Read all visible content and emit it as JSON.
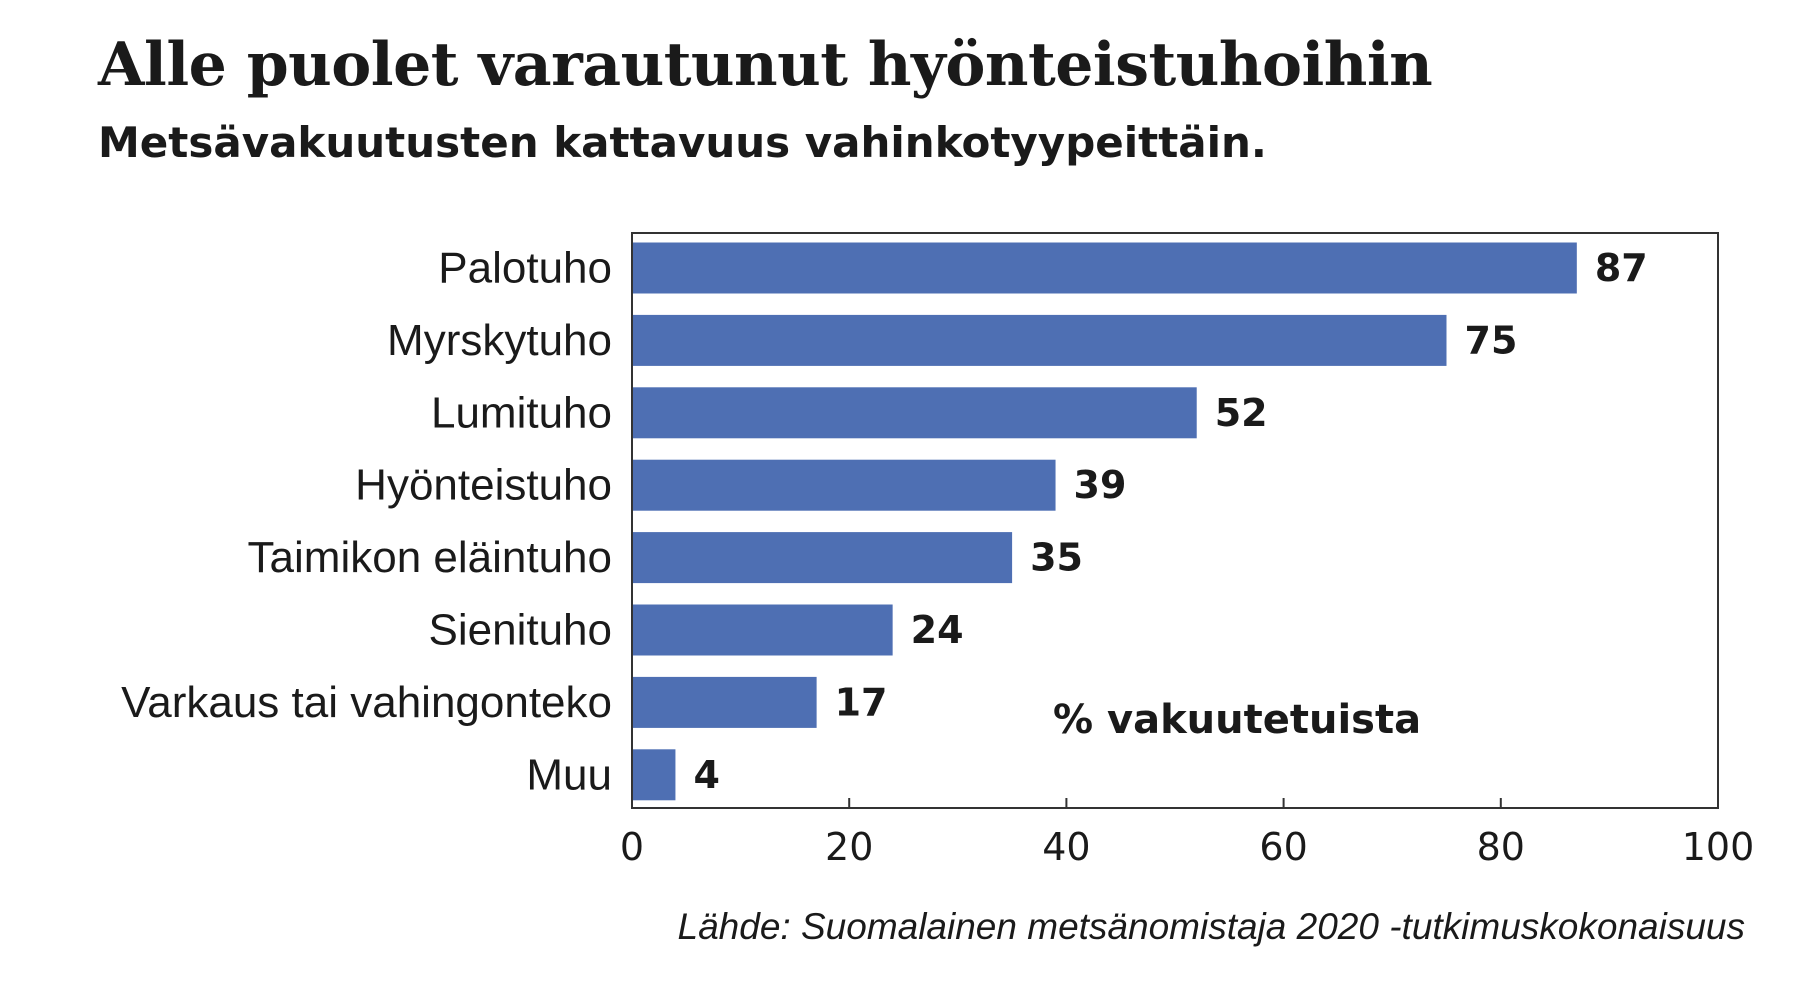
{
  "title": "Alle puolet varautunut hyönteistuhoihin",
  "subtitle": "Metsävakuutusten kattavuus vahinkotyypeittäin.",
  "source": "Lähde:  Suomalainen metsänomistaja 2020 -tutkimuskokonaisuus",
  "colors": {
    "bar": "#4e6fb3",
    "frame": "#333333",
    "text": "#1a1a1a"
  },
  "chart_data": {
    "type": "bar",
    "orientation": "horizontal",
    "categories": [
      "Palotuho",
      "Myrskytuho",
      "Lumituho",
      "Hyönteistuho",
      "Taimikon eläintuho",
      "Sienituho",
      "Varkaus tai vahingonteko",
      "Muu"
    ],
    "values": [
      87,
      75,
      52,
      39,
      35,
      24,
      17,
      4
    ],
    "data_labels": [
      "87",
      "75",
      "52",
      "39",
      "35",
      "24",
      "17",
      "4"
    ],
    "xlim": [
      0,
      100
    ],
    "xticks": [
      0,
      20,
      40,
      60,
      80,
      100
    ],
    "xtick_labels": [
      "0",
      "20",
      "40",
      "60",
      "80",
      "100"
    ],
    "unit_label": "% vakuutetuista",
    "grid": false
  }
}
